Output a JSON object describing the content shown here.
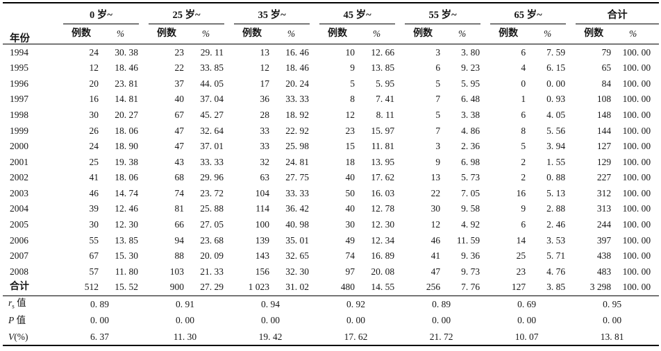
{
  "table": {
    "header": {
      "year": "年份",
      "groups": [
        "0 岁~",
        "25 岁~",
        "35 岁~",
        "45 岁~",
        "55 岁~",
        "65 岁~",
        "合计"
      ],
      "sub": [
        "例数",
        "%"
      ]
    },
    "rows": [
      {
        "label": "1994",
        "values": [
          "24",
          "30. 38",
          "23",
          "29. 11",
          "13",
          "16. 46",
          "10",
          "12. 66",
          "3",
          "3. 80",
          "6",
          "7. 59",
          "79",
          "100. 00"
        ]
      },
      {
        "label": "1995",
        "values": [
          "12",
          "18. 46",
          "22",
          "33. 85",
          "12",
          "18. 46",
          "9",
          "13. 85",
          "6",
          "9. 23",
          "4",
          "6. 15",
          "65",
          "100. 00"
        ]
      },
      {
        "label": "1996",
        "values": [
          "20",
          "23. 81",
          "37",
          "44. 05",
          "17",
          "20. 24",
          "5",
          "5. 95",
          "5",
          "5. 95",
          "0",
          "0. 00",
          "84",
          "100. 00"
        ]
      },
      {
        "label": "1997",
        "values": [
          "16",
          "14. 81",
          "40",
          "37. 04",
          "36",
          "33. 33",
          "8",
          "7. 41",
          "7",
          "6. 48",
          "1",
          "0. 93",
          "108",
          "100. 00"
        ]
      },
      {
        "label": "1998",
        "values": [
          "30",
          "20. 27",
          "67",
          "45. 27",
          "28",
          "18. 92",
          "12",
          "8. 11",
          "5",
          "3. 38",
          "6",
          "4. 05",
          "148",
          "100. 00"
        ]
      },
      {
        "label": "1999",
        "values": [
          "26",
          "18. 06",
          "47",
          "32. 64",
          "33",
          "22. 92",
          "23",
          "15. 97",
          "7",
          "4. 86",
          "8",
          "5. 56",
          "144",
          "100. 00"
        ]
      },
      {
        "label": "2000",
        "values": [
          "24",
          "18. 90",
          "47",
          "37. 01",
          "33",
          "25. 98",
          "15",
          "11. 81",
          "3",
          "2. 36",
          "5",
          "3. 94",
          "127",
          "100. 00"
        ]
      },
      {
        "label": "2001",
        "values": [
          "25",
          "19. 38",
          "43",
          "33. 33",
          "32",
          "24. 81",
          "18",
          "13. 95",
          "9",
          "6. 98",
          "2",
          "1. 55",
          "129",
          "100. 00"
        ]
      },
      {
        "label": "2002",
        "values": [
          "41",
          "18. 06",
          "68",
          "29. 96",
          "63",
          "27. 75",
          "40",
          "17. 62",
          "13",
          "5. 73",
          "2",
          "0. 88",
          "227",
          "100. 00"
        ]
      },
      {
        "label": "2003",
        "values": [
          "46",
          "14. 74",
          "74",
          "23. 72",
          "104",
          "33. 33",
          "50",
          "16. 03",
          "22",
          "7. 05",
          "16",
          "5. 13",
          "312",
          "100. 00"
        ]
      },
      {
        "label": "2004",
        "values": [
          "39",
          "12. 46",
          "81",
          "25. 88",
          "114",
          "36. 42",
          "40",
          "12. 78",
          "30",
          "9. 58",
          "9",
          "2. 88",
          "313",
          "100. 00"
        ]
      },
      {
        "label": "2005",
        "values": [
          "30",
          "12. 30",
          "66",
          "27. 05",
          "100",
          "40. 98",
          "30",
          "12. 30",
          "12",
          "4. 92",
          "6",
          "2. 46",
          "244",
          "100. 00"
        ]
      },
      {
        "label": "2006",
        "values": [
          "55",
          "13. 85",
          "94",
          "23. 68",
          "139",
          "35. 01",
          "49",
          "12. 34",
          "46",
          "11. 59",
          "14",
          "3. 53",
          "397",
          "100. 00"
        ]
      },
      {
        "label": "2007",
        "values": [
          "67",
          "15. 30",
          "88",
          "20. 09",
          "143",
          "32. 65",
          "74",
          "16. 89",
          "41",
          "9. 36",
          "25",
          "5. 71",
          "438",
          "100. 00"
        ]
      },
      {
        "label": "2008",
        "values": [
          "57",
          "11. 80",
          "103",
          "21. 33",
          "156",
          "32. 30",
          "97",
          "20. 08",
          "47",
          "9. 73",
          "23",
          "4. 76",
          "483",
          "100. 00"
        ]
      }
    ],
    "total": {
      "label": "合计",
      "values": [
        "512",
        "15. 52",
        "900",
        "27. 29",
        "1 023",
        "31. 02",
        "480",
        "14. 55",
        "256",
        "7. 76",
        "127",
        "3. 85",
        "3 298",
        "100. 00"
      ]
    },
    "stats": [
      {
        "label_var": "r",
        "label_sub": "s",
        "label_rest": " 值",
        "values": [
          "0. 89",
          "0. 91",
          "0. 94",
          "0. 92",
          "0. 89",
          "0. 69",
          "0. 95"
        ]
      },
      {
        "label_var": "P",
        "label_sub": "",
        "label_rest": " 值",
        "values": [
          "0. 00",
          "0. 00",
          "0. 00",
          "0. 00",
          "0. 00",
          "0. 00",
          "0. 00"
        ]
      },
      {
        "label_var": "V",
        "label_sub": "",
        "label_rest": "(%)",
        "values": [
          "6. 37",
          "11. 30",
          "19. 42",
          "17. 62",
          "21. 72",
          "10. 07",
          "13. 81"
        ]
      }
    ]
  }
}
